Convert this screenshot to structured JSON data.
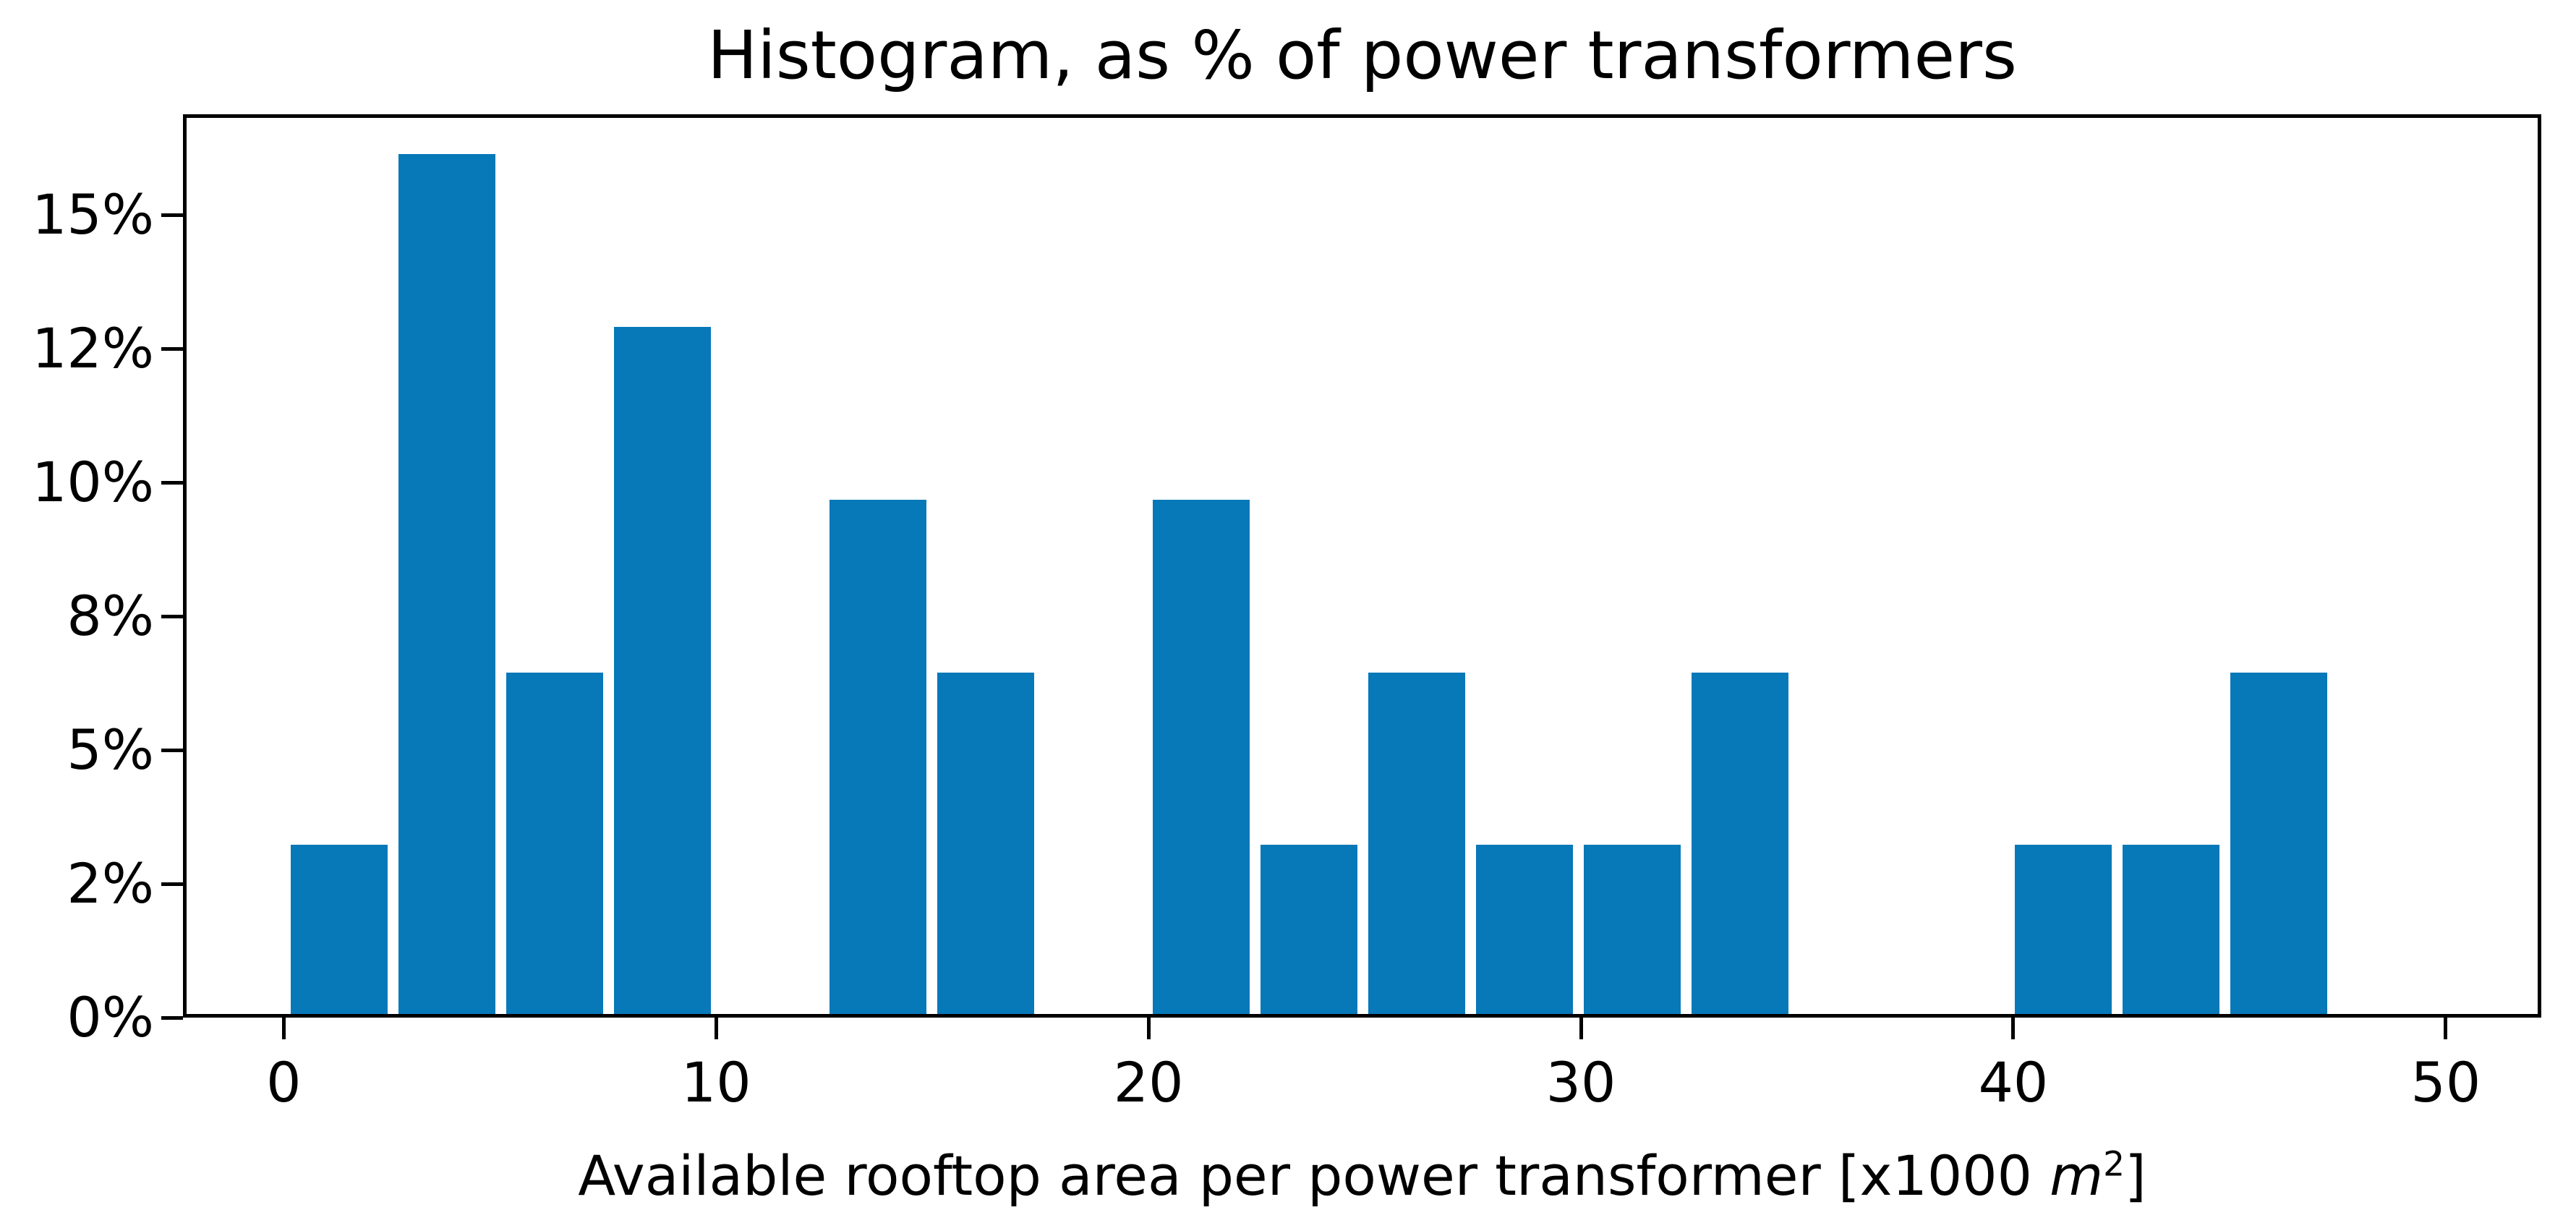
{
  "title": "Histogram, as % of power transformers",
  "xlabel": {
    "prefix": "Available rooftop area per power transformer [x1000 ",
    "math_symbol": "m",
    "math_exponent": "2",
    "suffix": "]"
  },
  "colors": {
    "bar": "#0778b8",
    "axis": "#000000",
    "background": "#ffffff",
    "text": "#000000"
  },
  "chart_data": {
    "type": "bar",
    "subtype": "histogram",
    "title": "Histogram, as % of power transformers",
    "xlabel": "Available rooftop area per power transformer [x1000 m^2]",
    "ylabel": "",
    "grid": false,
    "legend": false,
    "xlim": [
      -2.33,
      52.21
    ],
    "ylim_pct": [
      0,
      16.88
    ],
    "total_transformers": 31,
    "bin_width_units": 2.49,
    "bar_draw_width_units": 2.24,
    "xticks": {
      "values": [
        0,
        10,
        20,
        30,
        40,
        50
      ],
      "labels": [
        "0",
        "10",
        "20",
        "30",
        "40",
        "50"
      ]
    },
    "yticks": {
      "values_pct": [
        0,
        2.5,
        5,
        7.5,
        10,
        12.5,
        15
      ],
      "labels": [
        "0%",
        "2%",
        "5%",
        "8%",
        "10%",
        "12%",
        "15%"
      ]
    },
    "bars": [
      {
        "x0": 0.17,
        "count": 1,
        "pct": 3.23
      },
      {
        "x0": 2.66,
        "count": 5,
        "pct": 16.13
      },
      {
        "x0": 5.15,
        "count": 2,
        "pct": 6.45
      },
      {
        "x0": 7.64,
        "count": 4,
        "pct": 12.9
      },
      {
        "x0": 12.63,
        "count": 3,
        "pct": 9.68
      },
      {
        "x0": 15.12,
        "count": 2,
        "pct": 6.45
      },
      {
        "x0": 20.1,
        "count": 3,
        "pct": 9.68
      },
      {
        "x0": 22.59,
        "count": 1,
        "pct": 3.23
      },
      {
        "x0": 25.08,
        "count": 2,
        "pct": 6.45
      },
      {
        "x0": 27.57,
        "count": 1,
        "pct": 3.23
      },
      {
        "x0": 30.07,
        "count": 1,
        "pct": 3.23
      },
      {
        "x0": 32.56,
        "count": 2,
        "pct": 6.45
      },
      {
        "x0": 40.03,
        "count": 1,
        "pct": 3.23
      },
      {
        "x0": 42.52,
        "count": 1,
        "pct": 3.23
      },
      {
        "x0": 45.02,
        "count": 2,
        "pct": 6.45
      }
    ]
  }
}
